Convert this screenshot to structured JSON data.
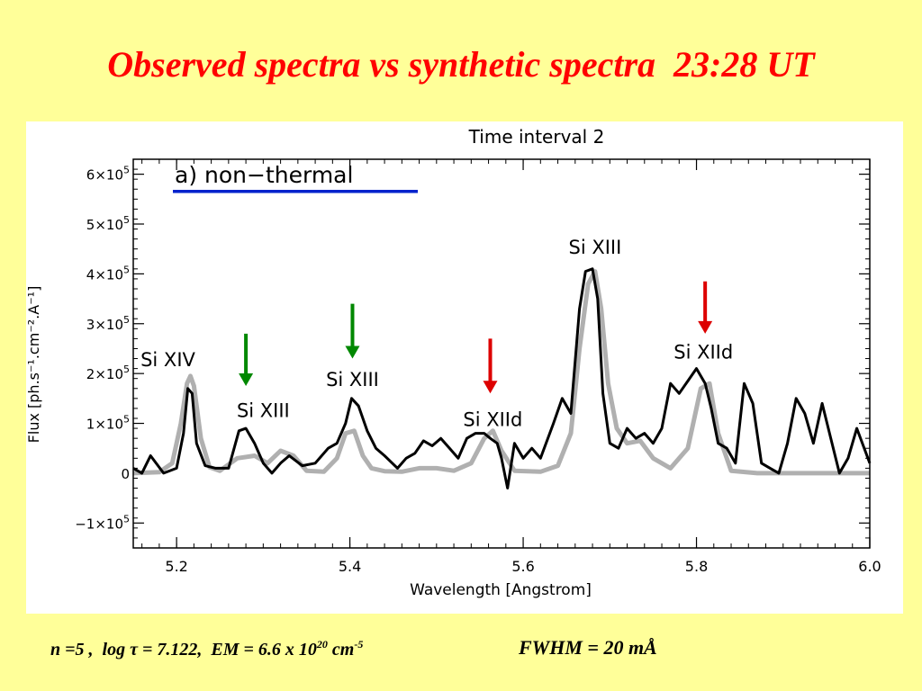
{
  "slide": {
    "title": "Observed spectra vs synthetic spectra  23:28 UT"
  },
  "footer": {
    "params": {
      "n_part": "n =5 ,  log ",
      "tau_symbol": "τ",
      "tau_part": " = 7.122,  EM = 6.6 x 10",
      "em_exp": "20",
      "unit_part": " cm",
      "unit_exp": "-5"
    },
    "fwhm": "FWHM = 20 mÅ"
  },
  "chart_data": {
    "type": "line",
    "title": "Time interval 2",
    "legend_label": "a) non−thermal",
    "legend_color": "#0022cc",
    "xlabel": "Wavelength  [Angstrom]",
    "ylabel": "Flux  [ph.s⁻¹.cm⁻².A⁻¹]",
    "xlim": [
      5.15,
      6.0
    ],
    "ylim": [
      -1.5,
      6.3
    ],
    "y_scale_note": "values in units of 1e5",
    "xticks": [
      5.2,
      5.4,
      5.6,
      5.8,
      6.0
    ],
    "xtick_labels": [
      "5.2",
      "5.4",
      "5.6",
      "5.8",
      "6.0"
    ],
    "yticks": [
      -1,
      0,
      1,
      2,
      3,
      4,
      5,
      6
    ],
    "ytick_labels": [
      {
        "mant": "−1×10",
        "exp": "5"
      },
      {
        "mant": "0",
        "exp": ""
      },
      {
        "mant": "1×10",
        "exp": "5"
      },
      {
        "mant": "2×10",
        "exp": "5"
      },
      {
        "mant": "3×10",
        "exp": "5"
      },
      {
        "mant": "4×10",
        "exp": "5"
      },
      {
        "mant": "5×10",
        "exp": "5"
      },
      {
        "mant": "6×10",
        "exp": "5"
      }
    ],
    "series": [
      {
        "name": "",
        "color": "#b0b0b0",
        "x": [
          5.15,
          5.18,
          5.195,
          5.205,
          5.212,
          5.216,
          5.22,
          5.228,
          5.238,
          5.25,
          5.27,
          5.29,
          5.305,
          5.32,
          5.335,
          5.35,
          5.37,
          5.385,
          5.395,
          5.405,
          5.415,
          5.425,
          5.44,
          5.46,
          5.48,
          5.5,
          5.52,
          5.54,
          5.555,
          5.565,
          5.575,
          5.59,
          5.62,
          5.64,
          5.655,
          5.665,
          5.675,
          5.683,
          5.69,
          5.698,
          5.708,
          5.72,
          5.735,
          5.75,
          5.77,
          5.79,
          5.805,
          5.815,
          5.825,
          5.84,
          5.87,
          5.92,
          6.0
        ],
        "y": [
          0,
          0.02,
          0.2,
          1.0,
          1.8,
          1.95,
          1.75,
          0.7,
          0.12,
          0.05,
          0.3,
          0.35,
          0.2,
          0.45,
          0.35,
          0.05,
          0.03,
          0.3,
          0.8,
          0.85,
          0.35,
          0.1,
          0.04,
          0.03,
          0.1,
          0.1,
          0.05,
          0.2,
          0.7,
          0.85,
          0.45,
          0.05,
          0.03,
          0.15,
          0.8,
          2.5,
          3.8,
          4.05,
          3.3,
          1.8,
          0.9,
          0.6,
          0.65,
          0.3,
          0.1,
          0.5,
          1.7,
          1.8,
          0.8,
          0.05,
          0,
          0,
          0
        ]
      },
      {
        "name": "",
        "color": "#000000",
        "x": [
          5.15,
          5.16,
          5.17,
          5.185,
          5.2,
          5.208,
          5.213,
          5.218,
          5.223,
          5.233,
          5.245,
          5.26,
          5.272,
          5.28,
          5.29,
          5.3,
          5.31,
          5.32,
          5.33,
          5.345,
          5.36,
          5.375,
          5.385,
          5.395,
          5.402,
          5.41,
          5.42,
          5.43,
          5.44,
          5.455,
          5.465,
          5.475,
          5.485,
          5.495,
          5.505,
          5.515,
          5.525,
          5.535,
          5.545,
          5.555,
          5.562,
          5.57,
          5.575,
          5.582,
          5.59,
          5.6,
          5.61,
          5.62,
          5.635,
          5.645,
          5.655,
          5.665,
          5.672,
          5.68,
          5.686,
          5.692,
          5.7,
          5.71,
          5.72,
          5.73,
          5.74,
          5.75,
          5.76,
          5.77,
          5.78,
          5.79,
          5.8,
          5.81,
          5.817,
          5.825,
          5.835,
          5.845,
          5.855,
          5.865,
          5.875,
          5.885,
          5.895,
          5.905,
          5.915,
          5.925,
          5.935,
          5.945,
          5.955,
          5.965,
          5.975,
          5.985,
          6.0
        ],
        "y": [
          0.1,
          0.0,
          0.35,
          0.0,
          0.1,
          0.8,
          1.7,
          1.6,
          0.6,
          0.15,
          0.1,
          0.1,
          0.85,
          0.9,
          0.6,
          0.2,
          0.0,
          0.2,
          0.35,
          0.15,
          0.2,
          0.5,
          0.6,
          1.0,
          1.5,
          1.35,
          0.85,
          0.5,
          0.35,
          0.1,
          0.3,
          0.4,
          0.65,
          0.55,
          0.7,
          0.5,
          0.3,
          0.7,
          0.8,
          0.8,
          0.7,
          0.6,
          0.3,
          -0.3,
          0.6,
          0.3,
          0.5,
          0.3,
          1.0,
          1.5,
          1.2,
          3.3,
          4.05,
          4.1,
          3.5,
          1.6,
          0.6,
          0.5,
          0.9,
          0.7,
          0.8,
          0.6,
          0.9,
          1.8,
          1.6,
          1.85,
          2.1,
          1.8,
          1.3,
          0.6,
          0.5,
          0.2,
          1.8,
          1.4,
          0.2,
          0.1,
          0.0,
          0.6,
          1.5,
          1.2,
          0.6,
          1.4,
          0.7,
          0.0,
          0.3,
          0.9,
          0.2
        ]
      }
    ],
    "annotations": [
      {
        "text": "Si  XIV",
        "x": 5.19,
        "y": 2.15
      },
      {
        "text": "Si  XIII",
        "x": 5.3,
        "y": 1.13
      },
      {
        "text": "Si  XIII",
        "x": 5.403,
        "y": 1.75
      },
      {
        "text": "Si  XIId",
        "x": 5.565,
        "y": 0.95
      },
      {
        "text": "Si  XIII",
        "x": 5.683,
        "y": 4.4
      },
      {
        "text": "Si  XIId",
        "x": 5.808,
        "y": 2.3
      }
    ],
    "arrows": [
      {
        "x": 5.28,
        "y_from": 2.8,
        "y_to": 1.75,
        "color": "#008800"
      },
      {
        "x": 5.403,
        "y_from": 3.4,
        "y_to": 2.3,
        "color": "#008800"
      },
      {
        "x": 5.562,
        "y_from": 2.7,
        "y_to": 1.6,
        "color": "#dd0000"
      },
      {
        "x": 5.81,
        "y_from": 3.85,
        "y_to": 2.8,
        "color": "#dd0000"
      }
    ]
  }
}
